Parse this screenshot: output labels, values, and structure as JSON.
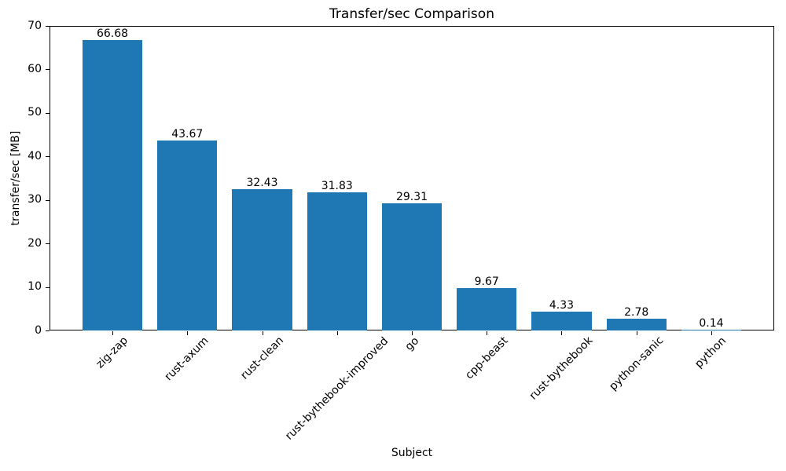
{
  "chart_data": {
    "type": "bar",
    "title": "Transfer/sec Comparison",
    "xlabel": "Subject",
    "ylabel": "transfer/sec [MB]",
    "categories": [
      "zig-zap",
      "rust-axum",
      "rust-clean",
      "rust-bythebook-improved",
      "go",
      "cpp-beast",
      "rust-bythebook",
      "python-sanic",
      "python"
    ],
    "values": [
      66.68,
      43.67,
      32.43,
      31.83,
      29.31,
      9.67,
      4.33,
      2.78,
      0.14
    ],
    "value_labels": [
      "66.68",
      "43.67",
      "32.43",
      "31.83",
      "29.31",
      "9.67",
      "4.33",
      "2.78",
      "0.14"
    ],
    "ylim": [
      0,
      70
    ],
    "yticks": [
      0,
      10,
      20,
      30,
      40,
      50,
      60,
      70
    ],
    "bar_color": "#1f77b4",
    "grid": false,
    "legend_position": "none",
    "xtick_rotation_deg": 45
  }
}
